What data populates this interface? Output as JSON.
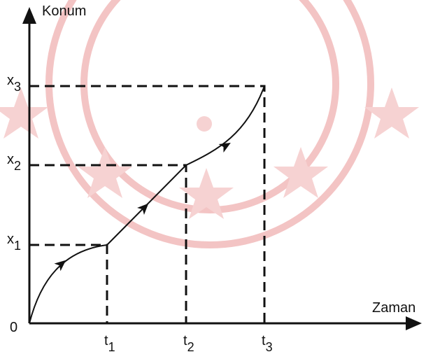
{
  "axes": {
    "y_label": "Konum",
    "x_label": "Zaman",
    "origin": "0"
  },
  "y_marks": [
    {
      "base": "x",
      "sub": "1"
    },
    {
      "base": "x",
      "sub": "2"
    },
    {
      "base": "x",
      "sub": "3"
    }
  ],
  "x_marks": [
    {
      "base": "t",
      "sub": "1"
    },
    {
      "base": "t",
      "sub": "2"
    },
    {
      "base": "t",
      "sub": "3"
    }
  ]
}
